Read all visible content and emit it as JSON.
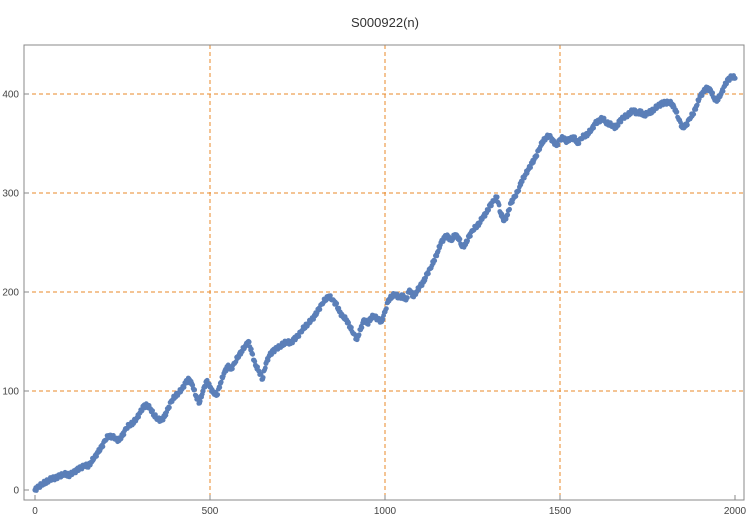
{
  "chart_data": {
    "type": "scatter",
    "title": "S000922(n)",
    "xlabel": "",
    "ylabel": "",
    "xlim": [
      0,
      2000
    ],
    "ylim": [
      0,
      425
    ],
    "x_ticks": [
      0,
      500,
      1000,
      1500,
      2000
    ],
    "y_ticks": [
      0,
      100,
      200,
      300,
      400
    ],
    "grid": true,
    "grid_x": [
      500,
      1000,
      1500
    ],
    "grid_y": [
      100,
      200,
      300,
      400
    ],
    "colors": {
      "points": "#5b7fb8",
      "grid": "#e8882a",
      "axis": "#888888"
    },
    "series": [
      {
        "x": [
          0,
          10,
          20,
          30,
          40,
          50,
          60,
          70,
          80,
          90,
          100,
          110,
          120,
          130,
          140,
          150,
          160,
          170,
          180,
          190,
          200,
          210,
          220,
          230,
          240,
          250,
          260,
          270,
          280,
          290,
          300,
          310,
          320,
          330,
          340,
          350,
          360,
          370,
          380,
          390,
          400,
          410,
          420,
          430,
          440,
          450,
          460,
          470,
          480,
          490,
          500,
          510,
          520,
          530,
          540,
          550,
          560,
          570,
          580,
          590,
          600,
          610,
          620,
          630,
          640,
          650,
          660,
          670,
          680,
          690,
          700,
          710,
          720,
          730,
          740,
          750,
          760,
          770,
          780,
          790,
          800,
          810,
          820,
          830,
          840,
          850,
          860,
          870,
          880,
          890,
          900,
          910,
          920,
          930,
          940,
          950,
          960,
          970,
          980,
          990,
          1000,
          1010,
          1020,
          1030,
          1040,
          1050,
          1060,
          1070,
          1080,
          1090,
          1100,
          1110,
          1120,
          1130,
          1140,
          1150,
          1160,
          1170,
          1180,
          1190,
          1200,
          1210,
          1220,
          1230,
          1240,
          1250,
          1260,
          1270,
          1280,
          1290,
          1300,
          1310,
          1320,
          1330,
          1340,
          1350,
          1360,
          1370,
          1380,
          1390,
          1400,
          1410,
          1420,
          1430,
          1440,
          1450,
          1460,
          1470,
          1480,
          1490,
          1500,
          1510,
          1520,
          1530,
          1540,
          1550,
          1560,
          1570,
          1580,
          1590,
          1600,
          1610,
          1620,
          1630,
          1640,
          1650,
          1660,
          1670,
          1680,
          1690,
          1700,
          1710,
          1720,
          1730,
          1740,
          1750,
          1760,
          1770,
          1780,
          1790,
          1800,
          1810,
          1820,
          1830,
          1840,
          1850,
          1860,
          1870,
          1880,
          1890,
          1900,
          1910,
          1920,
          1930,
          1940,
          1950,
          1960,
          1970,
          1980,
          1990,
          2000
        ],
        "y": [
          0,
          3,
          6,
          8,
          10,
          12,
          12,
          14,
          16,
          16,
          15,
          18,
          20,
          22,
          25,
          24,
          28,
          33,
          38,
          43,
          50,
          55,
          54,
          52,
          50,
          55,
          62,
          66,
          68,
          72,
          78,
          84,
          86,
          82,
          76,
          72,
          70,
          74,
          82,
          90,
          95,
          98,
          102,
          108,
          112,
          106,
          95,
          88,
          100,
          110,
          104,
          98,
          96,
          108,
          118,
          125,
          122,
          128,
          135,
          140,
          145,
          150,
          138,
          126,
          120,
          112,
          128,
          136,
          140,
          143,
          145,
          148,
          150,
          148,
          152,
          155,
          160,
          165,
          168,
          172,
          176,
          182,
          188,
          193,
          196,
          192,
          188,
          180,
          175,
          172,
          165,
          158,
          152,
          162,
          172,
          168,
          174,
          176,
          172,
          170,
          180,
          192,
          196,
          198,
          194,
          196,
          192,
          202,
          196,
          200,
          206,
          210,
          218,
          224,
          232,
          240,
          250,
          255,
          256,
          252,
          258,
          255,
          246,
          248,
          256,
          262,
          266,
          270,
          276,
          280,
          287,
          292,
          296,
          280,
          272,
          278,
          290,
          296,
          302,
          312,
          318,
          324,
          330,
          336,
          344,
          352,
          356,
          358,
          352,
          348,
          354,
          356,
          352,
          355,
          356,
          350,
          355,
          358,
          360,
          364,
          370,
          372,
          376,
          372,
          370,
          368,
          366,
          372,
          376,
          378,
          381,
          384,
          380,
          382,
          378,
          381,
          382,
          385,
          388,
          390,
          391,
          392,
          390,
          384,
          374,
          366,
          368,
          375,
          380,
          388,
          398,
          402,
          406,
          404,
          396,
          394,
          400,
          408,
          414,
          418,
          416
        ]
      }
    ]
  }
}
